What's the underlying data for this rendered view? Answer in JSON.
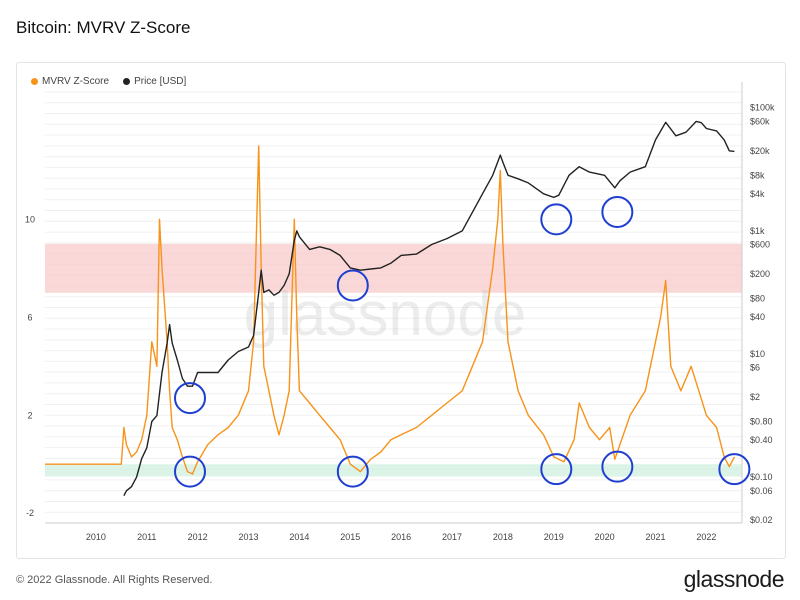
{
  "header": {
    "title": "Bitcoin: MVRV Z-Score"
  },
  "legend": [
    {
      "name": "MVRV Z-Score",
      "color": "#f7931a"
    },
    {
      "name": "Price [USD]",
      "color": "#222222"
    }
  ],
  "watermark": "glassnode",
  "footer": {
    "copyright": "© 2022 Glassnode. All Rights Reserved.",
    "logo": "glassnode"
  },
  "chart_data": {
    "type": "line",
    "title": "Bitcoin: MVRV Z-Score",
    "x_ticks": [
      "2010",
      "2011",
      "2012",
      "2013",
      "2014",
      "2015",
      "2016",
      "2017",
      "2018",
      "2019",
      "2020",
      "2021",
      "2022"
    ],
    "left_axis": {
      "ticks": [
        "-2",
        "2",
        "6",
        "10"
      ],
      "values": [
        -2,
        2,
        6,
        10
      ],
      "ylim": [
        -2.4,
        15.2
      ]
    },
    "right_axis": {
      "scale": "log",
      "ticks": [
        "$0.02",
        "$0.06",
        "$0.10",
        "$0.40",
        "$0.80",
        "$2",
        "$6",
        "$10",
        "$40",
        "$80",
        "$200",
        "$600",
        "$1k",
        "$4k",
        "$8k",
        "$20k",
        "$60k",
        "$100k"
      ],
      "values": [
        0.02,
        0.06,
        0.1,
        0.4,
        0.8,
        2,
        6,
        10,
        40,
        80,
        200,
        600,
        1000,
        4000,
        8000,
        20000,
        60000,
        100000
      ],
      "ylim": [
        0.018,
        180000
      ]
    },
    "bands": [
      {
        "axis": "left",
        "from": 7,
        "to": 9,
        "color": "#f8c8c8"
      },
      {
        "axis": "left",
        "from": -0.5,
        "to": 0,
        "color": "#cdeedd"
      }
    ],
    "series": [
      {
        "name": "MVRV Z-Score",
        "axis": "left",
        "color": "#f7931a",
        "x": [
          2009.0,
          2010.5,
          2010.55,
          2010.6,
          2010.7,
          2010.8,
          2010.9,
          2011.0,
          2011.1,
          2011.2,
          2011.25,
          2011.3,
          2011.4,
          2011.45,
          2011.5,
          2011.6,
          2011.7,
          2011.8,
          2011.9,
          2012.0,
          2012.2,
          2012.4,
          2012.6,
          2012.8,
          2013.0,
          2013.1,
          2013.2,
          2013.25,
          2013.3,
          2013.4,
          2013.5,
          2013.6,
          2013.7,
          2013.8,
          2013.9,
          2013.95,
          2014.0,
          2014.2,
          2014.4,
          2014.6,
          2014.8,
          2015.0,
          2015.2,
          2015.4,
          2015.6,
          2015.8,
          2016.0,
          2016.3,
          2016.6,
          2016.9,
          2017.2,
          2017.4,
          2017.6,
          2017.8,
          2017.9,
          2017.95,
          2018.0,
          2018.1,
          2018.3,
          2018.5,
          2018.8,
          2019.0,
          2019.2,
          2019.4,
          2019.5,
          2019.7,
          2019.9,
          2020.1,
          2020.2,
          2020.3,
          2020.5,
          2020.8,
          2021.0,
          2021.1,
          2021.2,
          2021.3,
          2021.5,
          2021.7,
          2021.85,
          2022.0,
          2022.2,
          2022.35,
          2022.45,
          2022.55
        ],
        "y": [
          0,
          0,
          1.5,
          0.8,
          0.3,
          0.5,
          1,
          2,
          5,
          4,
          10,
          8,
          5,
          3,
          1.5,
          1,
          0.3,
          -0.3,
          -0.4,
          0.1,
          0.8,
          1.2,
          1.5,
          2,
          3,
          5,
          13,
          8,
          4,
          3,
          2,
          1.2,
          2,
          3,
          10,
          6,
          3,
          2.5,
          2,
          1.5,
          1,
          0,
          -0.3,
          0.2,
          0.5,
          1,
          1.2,
          1.5,
          2,
          2.5,
          3,
          4,
          5,
          8,
          10,
          12,
          9,
          5,
          3,
          2,
          1.2,
          0.3,
          0.1,
          1,
          2.5,
          1.5,
          1,
          1.5,
          0.2,
          0.8,
          2,
          3,
          5,
          6,
          7.5,
          4,
          3,
          4,
          3,
          2,
          1.5,
          0.3,
          -0.1,
          0.3
        ]
      },
      {
        "name": "Price [USD]",
        "axis": "right",
        "color": "#222222",
        "x": [
          2010.55,
          2010.6,
          2010.7,
          2010.8,
          2010.9,
          2011.0,
          2011.1,
          2011.2,
          2011.3,
          2011.4,
          2011.45,
          2011.5,
          2011.6,
          2011.7,
          2011.8,
          2011.9,
          2012.0,
          2012.2,
          2012.4,
          2012.6,
          2012.8,
          2013.0,
          2013.1,
          2013.2,
          2013.25,
          2013.3,
          2013.4,
          2013.5,
          2013.6,
          2013.7,
          2013.8,
          2013.9,
          2013.95,
          2014.0,
          2014.2,
          2014.4,
          2014.6,
          2014.8,
          2015.0,
          2015.2,
          2015.4,
          2015.6,
          2015.8,
          2016.0,
          2016.3,
          2016.6,
          2016.9,
          2017.2,
          2017.4,
          2017.6,
          2017.8,
          2017.95,
          2018.0,
          2018.1,
          2018.3,
          2018.5,
          2018.8,
          2019.0,
          2019.1,
          2019.3,
          2019.5,
          2019.7,
          2020.0,
          2020.2,
          2020.3,
          2020.5,
          2020.8,
          2021.0,
          2021.2,
          2021.4,
          2021.6,
          2021.8,
          2021.9,
          2022.0,
          2022.2,
          2022.35,
          2022.45,
          2022.55
        ],
        "y": [
          0.05,
          0.06,
          0.07,
          0.1,
          0.2,
          0.3,
          0.8,
          1,
          5,
          15,
          30,
          15,
          8,
          4,
          3,
          3,
          5,
          5,
          5,
          8,
          11,
          13,
          20,
          100,
          230,
          100,
          110,
          90,
          100,
          130,
          200,
          700,
          1000,
          800,
          500,
          550,
          500,
          400,
          250,
          230,
          240,
          250,
          300,
          400,
          420,
          600,
          750,
          1000,
          2000,
          4000,
          8000,
          17000,
          13000,
          8000,
          7000,
          6000,
          4000,
          3500,
          3800,
          8000,
          11000,
          9000,
          8000,
          5000,
          6500,
          9000,
          11000,
          30000,
          58000,
          35000,
          40000,
          60000,
          57000,
          46000,
          42000,
          30000,
          20000,
          19500
        ]
      }
    ],
    "annotations": [
      {
        "shape": "circle",
        "x": 2011.85,
        "y": 2.7,
        "axis": "left"
      },
      {
        "shape": "circle",
        "x": 2011.85,
        "y": -0.3,
        "axis": "left"
      },
      {
        "shape": "circle",
        "x": 2015.05,
        "y": 7.3,
        "axis": "left"
      },
      {
        "shape": "circle",
        "x": 2015.05,
        "y": -0.3,
        "axis": "left"
      },
      {
        "shape": "circle",
        "x": 2019.05,
        "y": 10.0,
        "axis": "left"
      },
      {
        "shape": "circle",
        "x": 2019.05,
        "y": -0.2,
        "axis": "left"
      },
      {
        "shape": "circle",
        "x": 2020.25,
        "y": 10.3,
        "axis": "left"
      },
      {
        "shape": "circle",
        "x": 2020.25,
        "y": -0.1,
        "axis": "left"
      },
      {
        "shape": "circle",
        "x": 2022.55,
        "y": -0.2,
        "axis": "left"
      }
    ],
    "grid": true,
    "legend": "top-left"
  }
}
